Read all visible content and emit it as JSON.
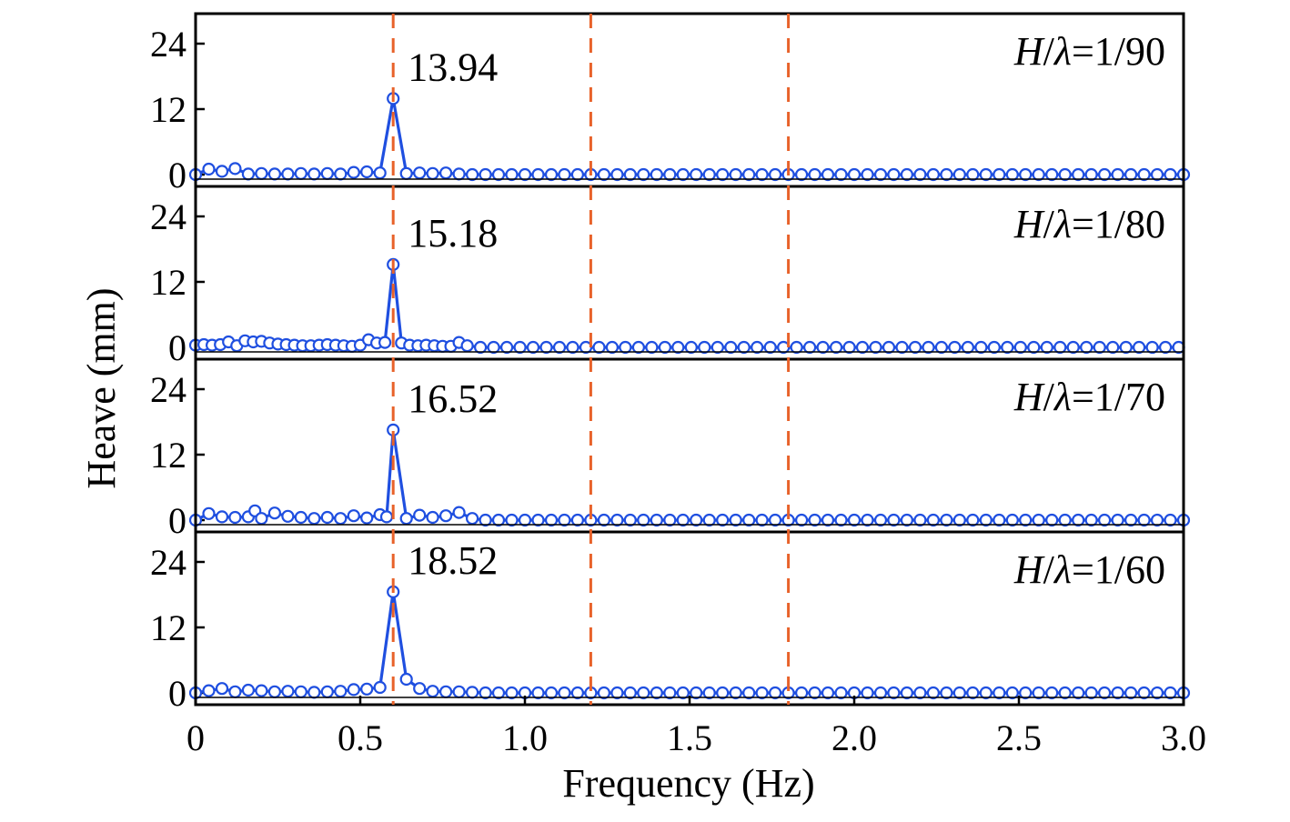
{
  "chart_data": {
    "type": "line",
    "xlabel": "Frequency (Hz)",
    "ylabel": "Heave (mm)",
    "xlim": [
      0,
      3.0
    ],
    "x_ticks": [
      "0",
      "0.5",
      "1.0",
      "1.5",
      "2.0",
      "2.5",
      "3.0"
    ],
    "y_ticks": [
      "0",
      "12",
      "24"
    ],
    "ylim": [
      -1,
      30
    ],
    "reference_lines_x": [
      0.6,
      1.2,
      1.8
    ],
    "reference_line_color": "#E8622A",
    "series_color": "#1F4FE0",
    "panels": [
      {
        "label": "H/λ=1/90",
        "ratio": "1/90",
        "peak_label": "13.94",
        "peak": {
          "x": 0.6,
          "y": 13.94
        },
        "points": [
          [
            0,
            0
          ],
          [
            0.04,
            1.0
          ],
          [
            0.08,
            0.6
          ],
          [
            0.12,
            1.1
          ],
          [
            0.16,
            0.1
          ],
          [
            0.2,
            0.2
          ],
          [
            0.24,
            0.1
          ],
          [
            0.28,
            0.1
          ],
          [
            0.32,
            0.2
          ],
          [
            0.36,
            0.1
          ],
          [
            0.4,
            0.2
          ],
          [
            0.44,
            0.1
          ],
          [
            0.48,
            0.4
          ],
          [
            0.52,
            0.5
          ],
          [
            0.56,
            0.3
          ],
          [
            0.6,
            13.94
          ],
          [
            0.64,
            0.2
          ],
          [
            0.68,
            0.3
          ],
          [
            0.72,
            0.2
          ],
          [
            0.76,
            0.3
          ],
          [
            0.8,
            0.1
          ]
        ]
      },
      {
        "label": "H/λ=1/80",
        "ratio": "1/80",
        "peak_label": "15.18",
        "peak": {
          "x": 0.6,
          "y": 15.18
        },
        "points": [
          [
            0,
            0.4
          ],
          [
            0.025,
            0.5
          ],
          [
            0.05,
            0.4
          ],
          [
            0.075,
            0.5
          ],
          [
            0.1,
            1.0
          ],
          [
            0.125,
            0.3
          ],
          [
            0.15,
            1.2
          ],
          [
            0.175,
            1.0
          ],
          [
            0.2,
            1.1
          ],
          [
            0.225,
            0.8
          ],
          [
            0.25,
            0.6
          ],
          [
            0.275,
            0.5
          ],
          [
            0.3,
            0.4
          ],
          [
            0.325,
            0.3
          ],
          [
            0.35,
            0.3
          ],
          [
            0.375,
            0.4
          ],
          [
            0.4,
            0.5
          ],
          [
            0.425,
            0.4
          ],
          [
            0.45,
            0.3
          ],
          [
            0.475,
            0.2
          ],
          [
            0.5,
            0.4
          ],
          [
            0.525,
            1.4
          ],
          [
            0.55,
            0.8
          ],
          [
            0.575,
            0.9
          ],
          [
            0.6,
            15.18
          ],
          [
            0.625,
            0.8
          ],
          [
            0.65,
            0.4
          ],
          [
            0.675,
            0.3
          ],
          [
            0.7,
            0.4
          ],
          [
            0.725,
            0.3
          ],
          [
            0.75,
            0.2
          ],
          [
            0.775,
            0.2
          ],
          [
            0.8,
            0.9
          ],
          [
            0.825,
            0.3
          ]
        ]
      },
      {
        "label": "H/λ=1/70",
        "ratio": "1/70",
        "peak_label": "16.52",
        "peak": {
          "x": 0.6,
          "y": 16.52
        },
        "points": [
          [
            0,
            0
          ],
          [
            0.04,
            1.2
          ],
          [
            0.08,
            0.6
          ],
          [
            0.12,
            0.5
          ],
          [
            0.16,
            0.6
          ],
          [
            0.18,
            1.7
          ],
          [
            0.2,
            0.3
          ],
          [
            0.24,
            1.3
          ],
          [
            0.28,
            0.7
          ],
          [
            0.32,
            0.5
          ],
          [
            0.36,
            0.3
          ],
          [
            0.4,
            0.5
          ],
          [
            0.44,
            0.3
          ],
          [
            0.48,
            0.8
          ],
          [
            0.52,
            0.4
          ],
          [
            0.56,
            1.0
          ],
          [
            0.58,
            0.6
          ],
          [
            0.6,
            16.52
          ],
          [
            0.64,
            0.3
          ],
          [
            0.68,
            0.9
          ],
          [
            0.72,
            0.5
          ],
          [
            0.76,
            0.8
          ],
          [
            0.8,
            1.4
          ],
          [
            0.84,
            0.3
          ]
        ]
      },
      {
        "label": "H/λ=1/60",
        "ratio": "1/60",
        "peak_label": "18.52",
        "peak": {
          "x": 0.6,
          "y": 18.52
        },
        "points": [
          [
            0,
            0
          ],
          [
            0.04,
            0.4
          ],
          [
            0.08,
            0.8
          ],
          [
            0.12,
            0.2
          ],
          [
            0.16,
            0.5
          ],
          [
            0.2,
            0.4
          ],
          [
            0.24,
            0.2
          ],
          [
            0.28,
            0.3
          ],
          [
            0.32,
            0.2
          ],
          [
            0.36,
            0.1
          ],
          [
            0.4,
            0.2
          ],
          [
            0.44,
            0.3
          ],
          [
            0.48,
            0.6
          ],
          [
            0.52,
            0.7
          ],
          [
            0.56,
            1.0
          ],
          [
            0.6,
            18.52
          ],
          [
            0.64,
            2.5
          ],
          [
            0.68,
            0.8
          ],
          [
            0.72,
            0.3
          ],
          [
            0.76,
            0.2
          ],
          [
            0.8,
            0.2
          ],
          [
            0.84,
            0.1
          ]
        ]
      }
    ]
  }
}
